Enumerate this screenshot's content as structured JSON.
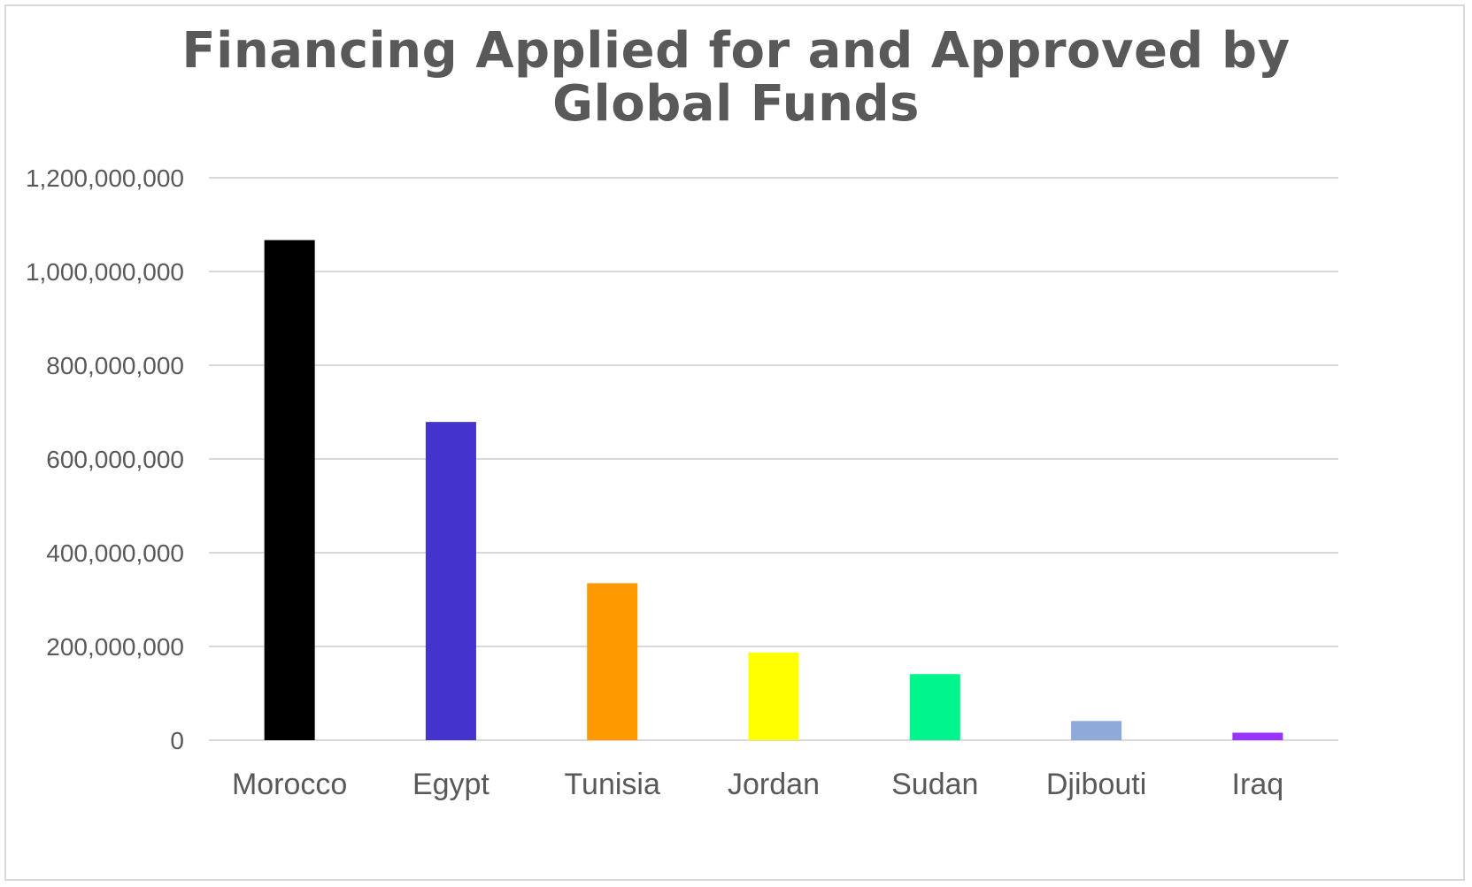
{
  "chart_data": {
    "type": "bar",
    "title_lines": [
      "Financing Applied for and Approved by",
      "Global Funds"
    ],
    "categories": [
      "Morocco",
      "Egypt",
      "Tunisia",
      "Jordan",
      "Sudan",
      "Djibouti",
      "Iraq"
    ],
    "values": [
      1067000000,
      679000000,
      335000000,
      187000000,
      141000000,
      41000000,
      16000000
    ],
    "colors": [
      "#000000",
      "#4433cc",
      "#ff9900",
      "#ffff00",
      "#00f58c",
      "#8eaadb",
      "#9933ff"
    ],
    "ylim": [
      0,
      1200000000
    ],
    "yticks": [
      0,
      200000000,
      400000000,
      600000000,
      800000000,
      1000000000,
      1200000000
    ],
    "ytick_labels": [
      "0",
      "200,000,000",
      "400,000,000",
      "600,000,000",
      "800,000,000",
      "1,000,000,000",
      "1,200,000,000"
    ],
    "grid": true,
    "gridline_color": "#d9d9d9"
  }
}
